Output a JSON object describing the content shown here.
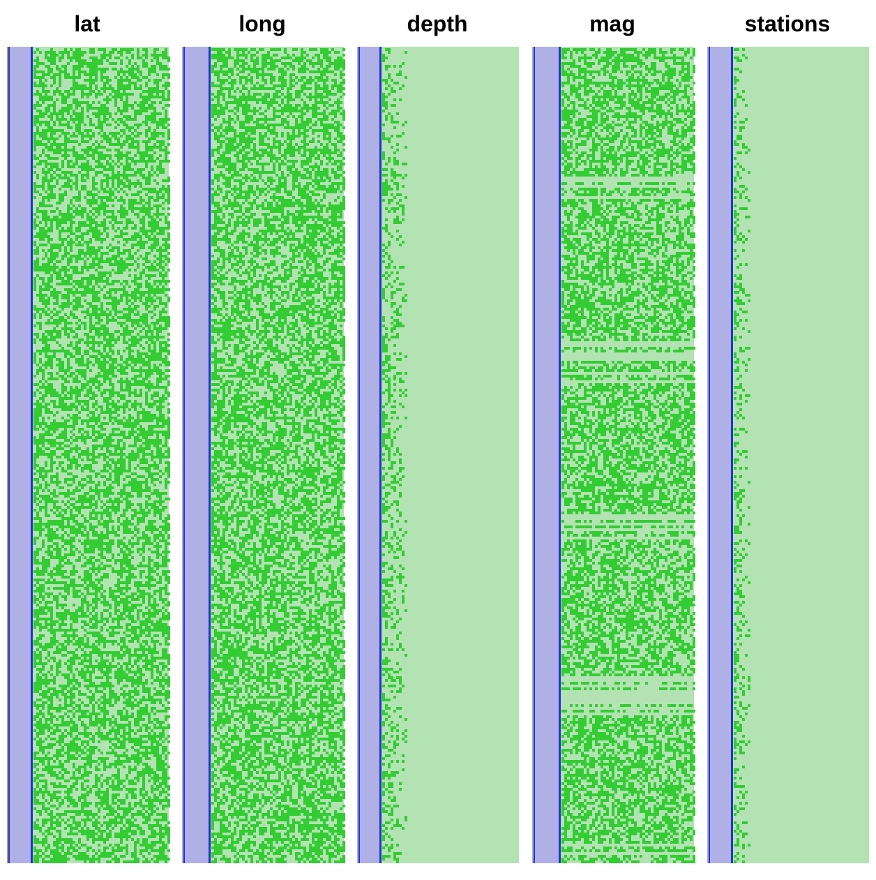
{
  "chart_data": {
    "type": "heatmap",
    "description_of_encoding": "",
    "panels": [
      {
        "title": "lat"
      },
      {
        "title": "long"
      },
      {
        "title": "depth"
      },
      {
        "title": "mag"
      },
      {
        "title": "stations"
      }
    ],
    "colors": {
      "background": "#ffffff",
      "column_fill": "#b3e3b3",
      "bit_on": "#33cc33",
      "sign_band": "#aeb0e6",
      "sign_line": "#2233cc",
      "edge_line": "#b8a04a"
    }
  }
}
